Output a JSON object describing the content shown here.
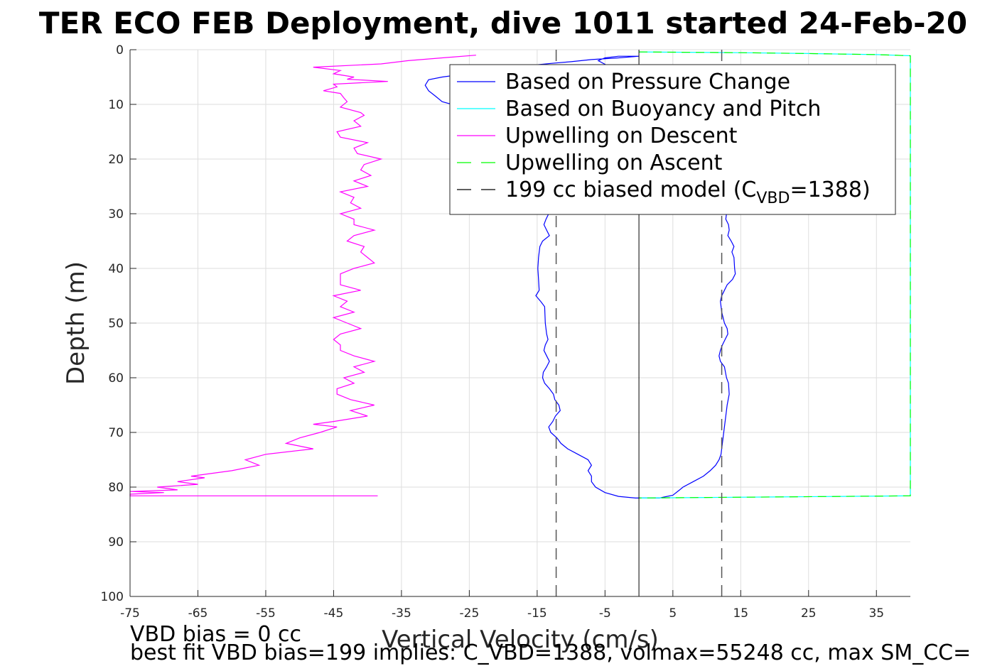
{
  "chart_data": {
    "type": "line",
    "title": "TER ECO FEB Deployment, dive 1011 started 24-Feb-20",
    "xlabel": "Vertical Velocity (cm/s)",
    "ylabel": "Depth (m)",
    "xlim": [
      -75,
      40
    ],
    "ylim": [
      0,
      100
    ],
    "y_reversed": true,
    "grid": true,
    "xticks": [
      -75,
      -65,
      -55,
      -45,
      -35,
      -25,
      -15,
      -5,
      5,
      15,
      25,
      35
    ],
    "yticks": [
      0,
      10,
      20,
      30,
      40,
      50,
      60,
      70,
      80,
      90,
      100
    ],
    "legend_position": "top-right",
    "legend": {
      "items": [
        {
          "label": "Based on Pressure Change",
          "color": "#0000ff",
          "dash": "solid"
        },
        {
          "label": "Based on Buoyancy and Pitch",
          "color": "#00ffff",
          "dash": "solid"
        },
        {
          "label": "Upwelling on Descent",
          "color": "#ff00ff",
          "dash": "solid"
        },
        {
          "label": "Upwelling on Ascent",
          "color": "#00ff00",
          "dash": "dashed"
        },
        {
          "label": "199 cc biased model (C",
          "sub": "VBD",
          "suffix": "=1388)",
          "color": "#000000",
          "dash": "dashed"
        }
      ]
    },
    "series": [
      {
        "name": "Based on Pressure Change",
        "color": "#0000ff",
        "points": [
          [
            0,
            82
          ],
          [
            3,
            82
          ],
          [
            5,
            81.5
          ],
          [
            6,
            80.5
          ],
          [
            6.5,
            80
          ],
          [
            8,
            79
          ],
          [
            9.5,
            78
          ],
          [
            10.5,
            77
          ],
          [
            11.3,
            76
          ],
          [
            11.8,
            75
          ],
          [
            12.1,
            74
          ],
          [
            12.3,
            72
          ],
          [
            12.5,
            70
          ],
          [
            12.8,
            67
          ],
          [
            13,
            65
          ],
          [
            13.3,
            63
          ],
          [
            13.2,
            61
          ],
          [
            12.9,
            60
          ],
          [
            12.6,
            58
          ],
          [
            12,
            57
          ],
          [
            11.8,
            56
          ],
          [
            12,
            55
          ],
          [
            12.3,
            54
          ],
          [
            12.7,
            53
          ],
          [
            13.1,
            52
          ],
          [
            13,
            51
          ],
          [
            12.6,
            50
          ],
          [
            12.2,
            48
          ],
          [
            12,
            46
          ],
          [
            12.2,
            45
          ],
          [
            12.6,
            44
          ],
          [
            13,
            43
          ],
          [
            13.8,
            42
          ],
          [
            14.2,
            41
          ],
          [
            14.1,
            40
          ],
          [
            14,
            38
          ],
          [
            13.7,
            37
          ],
          [
            14,
            36
          ],
          [
            13.6,
            35
          ],
          [
            13.1,
            34
          ],
          [
            13.3,
            33
          ],
          [
            13.2,
            32
          ],
          [
            12.8,
            31
          ],
          [
            12.9,
            30
          ],
          [
            13.2,
            29
          ],
          [
            12.9,
            28
          ],
          [
            13.2,
            27
          ],
          [
            12.8,
            26
          ],
          [
            12.5,
            24
          ],
          [
            12.2,
            20
          ],
          [
            12,
            15
          ],
          [
            11.5,
            10
          ],
          [
            7,
            7
          ],
          [
            3,
            5.5
          ],
          [
            0,
            4.5
          ],
          [
            -2,
            4
          ],
          [
            -4.5,
            3
          ],
          [
            -6,
            2
          ],
          [
            -5,
            1.5
          ],
          [
            -3,
            1.2
          ],
          [
            0,
            1.2
          ],
          [
            -3,
            1.5
          ],
          [
            -7,
            1.8
          ],
          [
            -10,
            2.2
          ],
          [
            -13,
            2.5
          ],
          [
            -17,
            3
          ],
          [
            -22,
            3.8
          ],
          [
            -26,
            4.5
          ],
          [
            -29,
            5
          ],
          [
            -31,
            5.5
          ],
          [
            -31.5,
            6.5
          ],
          [
            -31,
            7.5
          ],
          [
            -30,
            8.5
          ],
          [
            -29,
            9.5
          ],
          [
            -27,
            10.2
          ],
          [
            -25,
            10.5
          ],
          [
            -22,
            11
          ],
          [
            -19,
            12
          ],
          [
            -17,
            13.5
          ],
          [
            -15.5,
            15
          ],
          [
            -14.5,
            17
          ],
          [
            -14,
            20
          ],
          [
            -13.8,
            25
          ],
          [
            -13.5,
            29
          ],
          [
            -13.3,
            30
          ],
          [
            -13.7,
            31
          ],
          [
            -14,
            32
          ],
          [
            -13.6,
            33
          ],
          [
            -13.2,
            34
          ],
          [
            -14.2,
            35
          ],
          [
            -14.6,
            36
          ],
          [
            -14.8,
            38
          ],
          [
            -14.9,
            40
          ],
          [
            -14.8,
            42
          ],
          [
            -14.7,
            44
          ],
          [
            -15.2,
            45
          ],
          [
            -14.5,
            46
          ],
          [
            -13.9,
            47
          ],
          [
            -13.8,
            50
          ],
          [
            -13.6,
            52
          ],
          [
            -13.4,
            53
          ],
          [
            -13.8,
            54
          ],
          [
            -14,
            55
          ],
          [
            -13.6,
            56
          ],
          [
            -13.2,
            57
          ],
          [
            -13.6,
            58
          ],
          [
            -14.1,
            59
          ],
          [
            -14.2,
            60
          ],
          [
            -13.9,
            61
          ],
          [
            -13.2,
            62
          ],
          [
            -12.6,
            63
          ],
          [
            -12.4,
            64
          ],
          [
            -11.8,
            65
          ],
          [
            -11.6,
            66
          ],
          [
            -12.3,
            67
          ],
          [
            -12.7,
            68
          ],
          [
            -13.3,
            69
          ],
          [
            -13,
            70
          ],
          [
            -12.1,
            71
          ],
          [
            -11.5,
            72
          ],
          [
            -10.5,
            73
          ],
          [
            -9,
            74
          ],
          [
            -7.5,
            75
          ],
          [
            -7,
            76
          ],
          [
            -7.5,
            77
          ],
          [
            -7,
            78
          ],
          [
            -7,
            79
          ],
          [
            -6.4,
            80
          ],
          [
            -5,
            81
          ],
          [
            -3,
            81.7
          ],
          [
            -0.5,
            82
          ],
          [
            1,
            82
          ]
        ]
      },
      {
        "name": "Based on Buoyancy and Pitch",
        "color": "#00ffff",
        "points": [
          [
            0,
            0.4
          ],
          [
            5,
            0.45
          ],
          [
            15,
            0.55
          ],
          [
            25,
            0.7
          ],
          [
            35,
            0.9
          ],
          [
            40,
            1.1
          ],
          [
            40,
            81.6
          ],
          [
            30,
            81.7
          ],
          [
            20,
            81.8
          ],
          [
            10,
            81.9
          ],
          [
            0,
            82
          ]
        ]
      },
      {
        "name": "Upwelling on Descent",
        "color": "#ff00ff",
        "points": [
          [
            -24,
            1
          ],
          [
            -29,
            1.5
          ],
          [
            -34,
            2
          ],
          [
            -38,
            2.6
          ],
          [
            -48,
            3.2
          ],
          [
            -44,
            3.8
          ],
          [
            -45,
            4.4
          ],
          [
            -42,
            5
          ],
          [
            -43,
            5.4
          ],
          [
            -37,
            5.8
          ],
          [
            -45,
            6.3
          ],
          [
            -44.5,
            6.8
          ],
          [
            -46.5,
            7.5
          ],
          [
            -44,
            8
          ],
          [
            -43.5,
            8.8
          ],
          [
            -43,
            9.5
          ],
          [
            -44,
            10.5
          ],
          [
            -41,
            11.5
          ],
          [
            -40.5,
            12
          ],
          [
            -42,
            13
          ],
          [
            -41,
            14
          ],
          [
            -44.5,
            15
          ],
          [
            -44,
            16
          ],
          [
            -40,
            17
          ],
          [
            -42,
            18
          ],
          [
            -41.5,
            19
          ],
          [
            -38,
            20
          ],
          [
            -40.5,
            21
          ],
          [
            -41,
            22
          ],
          [
            -39.5,
            23
          ],
          [
            -42,
            24
          ],
          [
            -40,
            25
          ],
          [
            -44,
            26
          ],
          [
            -42,
            27
          ],
          [
            -42.5,
            28
          ],
          [
            -41,
            29
          ],
          [
            -44,
            30
          ],
          [
            -42,
            31
          ],
          [
            -42,
            32
          ],
          [
            -39,
            33
          ],
          [
            -42,
            34
          ],
          [
            -43,
            35
          ],
          [
            -40.5,
            36
          ],
          [
            -41,
            37
          ],
          [
            -40,
            38
          ],
          [
            -39,
            39
          ],
          [
            -42,
            40
          ],
          [
            -44,
            41
          ],
          [
            -44,
            42
          ],
          [
            -44,
            43
          ],
          [
            -41,
            44
          ],
          [
            -45,
            45
          ],
          [
            -43,
            46
          ],
          [
            -44,
            47
          ],
          [
            -42,
            48
          ],
          [
            -45,
            49
          ],
          [
            -43,
            50
          ],
          [
            -41,
            51
          ],
          [
            -44,
            52
          ],
          [
            -45,
            53
          ],
          [
            -44,
            54
          ],
          [
            -44,
            55
          ],
          [
            -42,
            56
          ],
          [
            -39,
            57
          ],
          [
            -42,
            58
          ],
          [
            -40.5,
            59
          ],
          [
            -43.5,
            60
          ],
          [
            -42,
            61
          ],
          [
            -44.5,
            62
          ],
          [
            -44.5,
            63
          ],
          [
            -42.5,
            64
          ],
          [
            -39,
            65
          ],
          [
            -42.5,
            66
          ],
          [
            -40,
            67
          ],
          [
            -45,
            68
          ],
          [
            -48,
            68.5
          ],
          [
            -44.5,
            69
          ],
          [
            -47,
            70
          ],
          [
            -50,
            71
          ],
          [
            -52,
            72
          ],
          [
            -48,
            73
          ],
          [
            -55,
            74
          ],
          [
            -58,
            75
          ],
          [
            -56,
            76
          ],
          [
            -60,
            77
          ],
          [
            -66,
            78
          ],
          [
            -64,
            78.3
          ],
          [
            -68,
            79
          ],
          [
            -65,
            79.5
          ],
          [
            -71,
            80
          ],
          [
            -68,
            80.5
          ],
          [
            -75,
            80.8
          ],
          [
            -70,
            81
          ],
          [
            -75,
            81.3
          ],
          [
            -75,
            81.6
          ],
          [
            -38.5,
            81.6
          ]
        ]
      },
      {
        "name": "Upwelling on Ascent",
        "color": "#00ff00",
        "dash": "dashed",
        "points": [
          [
            0,
            0.4
          ],
          [
            5,
            0.45
          ],
          [
            15,
            0.55
          ],
          [
            25,
            0.7
          ],
          [
            35,
            0.9
          ],
          [
            40,
            1.1
          ],
          [
            40,
            81.6
          ],
          [
            30,
            81.7
          ],
          [
            20,
            81.8
          ],
          [
            10,
            81.9
          ],
          [
            0,
            82
          ]
        ]
      }
    ],
    "vertical_lines": [
      {
        "name": "199 cc biased model",
        "x": -12.2,
        "color": "#000000",
        "dash": "dashed"
      },
      {
        "name": "199 cc biased model",
        "x": 12.2,
        "color": "#000000",
        "dash": "dashed"
      },
      {
        "name": "zero",
        "x": 0,
        "color": "#000000",
        "dash": "solid"
      }
    ]
  },
  "footer": {
    "line1": "VBD bias = 0 cc",
    "line2": "best fit VBD bias=199 implies: C_VBD=1388, volmax=55248 cc, max SM_CC="
  }
}
